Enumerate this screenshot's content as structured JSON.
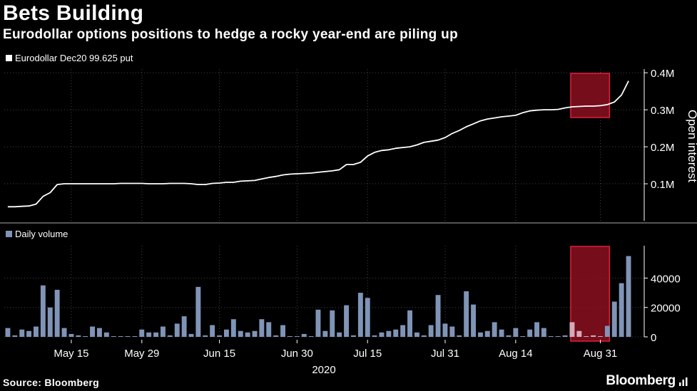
{
  "header": {
    "title": "Bets Building",
    "subtitle": "Eurodollar options positions to hedge a rocky year-end are piling up"
  },
  "footer": {
    "source": "Source: Bloomberg",
    "brand": "Bloomberg"
  },
  "colors": {
    "background": "#000000",
    "line": "#ffffff",
    "bar": "#7f94b6",
    "highlight_fill": "#8a0f1f",
    "highlight_stroke": "#e0203a",
    "grid": "#444444"
  },
  "chart_data": [
    {
      "type": "line",
      "legend": "Eurodollar Dec20 99.625 put",
      "ylabel": "Open interest",
      "ylim": [
        0,
        0.41
      ],
      "yticks": [
        0.1,
        0.2,
        0.3,
        0.4
      ],
      "ytick_labels": [
        "0.1M",
        "0.2M",
        "0.3M",
        "0.4M"
      ],
      "values": [
        0.038,
        0.038,
        0.039,
        0.04,
        0.045,
        0.066,
        0.076,
        0.098,
        0.1,
        0.1,
        0.1,
        0.1,
        0.1,
        0.1,
        0.1,
        0.1,
        0.101,
        0.101,
        0.101,
        0.101,
        0.1,
        0.1,
        0.1,
        0.101,
        0.101,
        0.101,
        0.1,
        0.098,
        0.098,
        0.101,
        0.102,
        0.104,
        0.104,
        0.107,
        0.108,
        0.109,
        0.113,
        0.117,
        0.12,
        0.124,
        0.126,
        0.127,
        0.128,
        0.129,
        0.131,
        0.133,
        0.135,
        0.138,
        0.152,
        0.152,
        0.158,
        0.175,
        0.185,
        0.19,
        0.192,
        0.196,
        0.198,
        0.2,
        0.205,
        0.212,
        0.215,
        0.218,
        0.225,
        0.236,
        0.244,
        0.254,
        0.262,
        0.27,
        0.275,
        0.278,
        0.281,
        0.283,
        0.285,
        0.292,
        0.297,
        0.299,
        0.3,
        0.3,
        0.301,
        0.305,
        0.308,
        0.309,
        0.31,
        0.31,
        0.311,
        0.314,
        0.321,
        0.34,
        0.378
      ]
    },
    {
      "type": "bar",
      "legend": "Daily volume",
      "ylim": [
        0,
        62000
      ],
      "yticks": [
        0,
        20000,
        40000
      ],
      "ytick_labels": [
        "0",
        "20000",
        "40000"
      ],
      "values": [
        6000,
        1000,
        5000,
        4000,
        7000,
        35000,
        20000,
        32000,
        6000,
        2000,
        1000,
        500,
        7000,
        6000,
        3000,
        500,
        500,
        500,
        500,
        5000,
        3000,
        3000,
        7000,
        1000,
        9000,
        14000,
        2000,
        34000,
        1000,
        8000,
        1000,
        5000,
        12000,
        4000,
        3000,
        4000,
        12000,
        10000,
        1000,
        8000,
        500,
        500,
        2000,
        500,
        18500,
        4000,
        18000,
        3000,
        21500,
        1000,
        30000,
        26500,
        1000,
        3000,
        4000,
        5000,
        8000,
        18000,
        3000,
        1000,
        8000,
        28500,
        9000,
        7000,
        1000,
        31000,
        22000,
        3000,
        4000,
        10000,
        5000,
        1000,
        6000,
        500,
        5000,
        10000,
        6000,
        500,
        500,
        1000,
        10000,
        4000,
        500,
        1000,
        500,
        7500,
        24000,
        36500,
        55000
      ]
    }
  ],
  "x_axis": {
    "tick_labels": [
      "May 15",
      "May 29",
      "Jun 15",
      "Jun 30",
      "Jul 15",
      "Jul 31",
      "Aug 14",
      "Aug 31"
    ],
    "tick_index": [
      9,
      19,
      30,
      41,
      51,
      62,
      72,
      84
    ],
    "year_label": "2020"
  },
  "highlight": {
    "start_index": 80,
    "end_index": 84
  }
}
